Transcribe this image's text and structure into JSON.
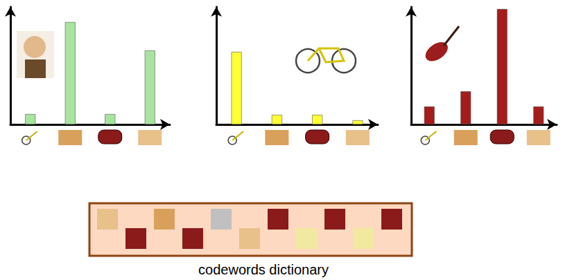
{
  "chart_data": [
    {
      "type": "bar",
      "categories": [
        null,
        null,
        null,
        null
      ],
      "values": [
        15,
        148,
        15,
        107
      ],
      "color": "#a8e4a0",
      "ylim": [
        0,
        170
      ],
      "tick_labels": false,
      "grid": false
    },
    {
      "type": "bar",
      "categories": [
        null,
        null,
        null,
        null
      ],
      "values": [
        105,
        14,
        14,
        6
      ],
      "color": "#ffff33",
      "ylim": [
        0,
        170
      ],
      "tick_labels": false,
      "grid": false
    },
    {
      "type": "bar",
      "categories": [
        null,
        null,
        null,
        null
      ],
      "values": [
        26,
        48,
        167,
        26
      ],
      "color": "#a51c1c",
      "ylim": [
        0,
        170
      ],
      "tick_labels": false,
      "grid": false
    }
  ],
  "caption": "codewords dictionary"
}
